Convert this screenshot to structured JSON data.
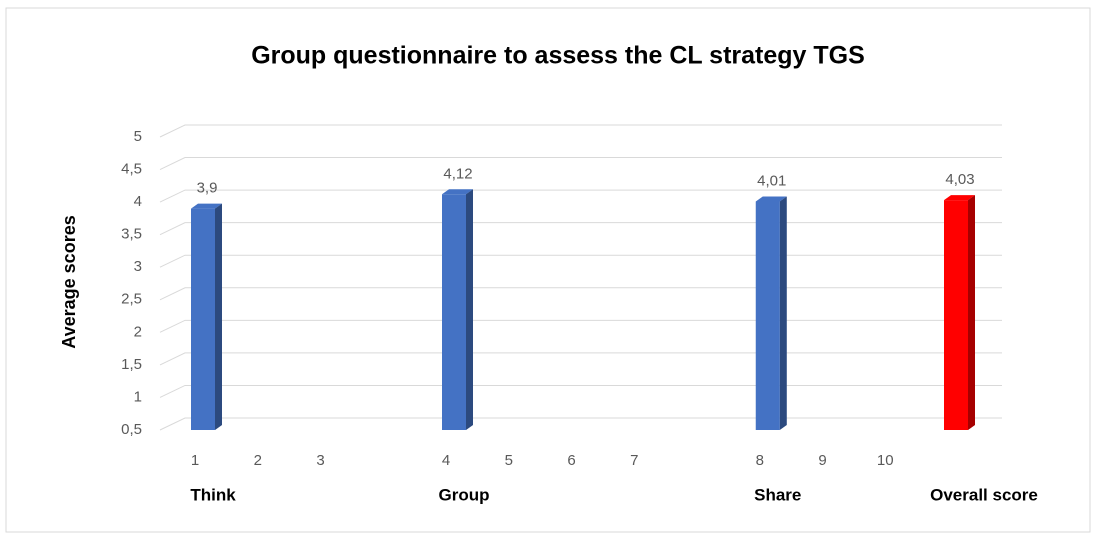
{
  "chart_data": {
    "type": "bar",
    "title": "Group questionnaire to assess the CL strategy TGS",
    "y_label": "Average scores",
    "categories": [
      "1",
      "2",
      "3",
      null,
      "4",
      "5",
      "6",
      "7",
      null,
      "8",
      "9",
      "10",
      null
    ],
    "group_labels": [
      "Think",
      null,
      null,
      null,
      "Group",
      null,
      null,
      null,
      null,
      "Share",
      null,
      null,
      "Overall score"
    ],
    "values": [
      3.9,
      null,
      null,
      null,
      4.12,
      null,
      null,
      null,
      null,
      4.01,
      null,
      null,
      4.03
    ],
    "value_labels": [
      "3,9",
      null,
      null,
      null,
      "4,12",
      null,
      null,
      null,
      null,
      "4,01",
      null,
      null,
      "4,03"
    ],
    "colors": [
      "#4472c4",
      null,
      null,
      null,
      "#4472c4",
      null,
      null,
      null,
      null,
      "#4472c4",
      null,
      null,
      "#ff0000"
    ],
    "ylim": [
      0.5,
      5
    ],
    "yticks": [
      {
        "value": 0.5,
        "label": "0,5"
      },
      1,
      {
        "value": 1.5,
        "label": "1,5"
      },
      2,
      {
        "value": 2.5,
        "label": "2,5"
      },
      3,
      {
        "value": 3.5,
        "label": "3,5"
      },
      4,
      {
        "value": 4.5,
        "label": "4,5"
      },
      5
    ],
    "grid": true
  }
}
